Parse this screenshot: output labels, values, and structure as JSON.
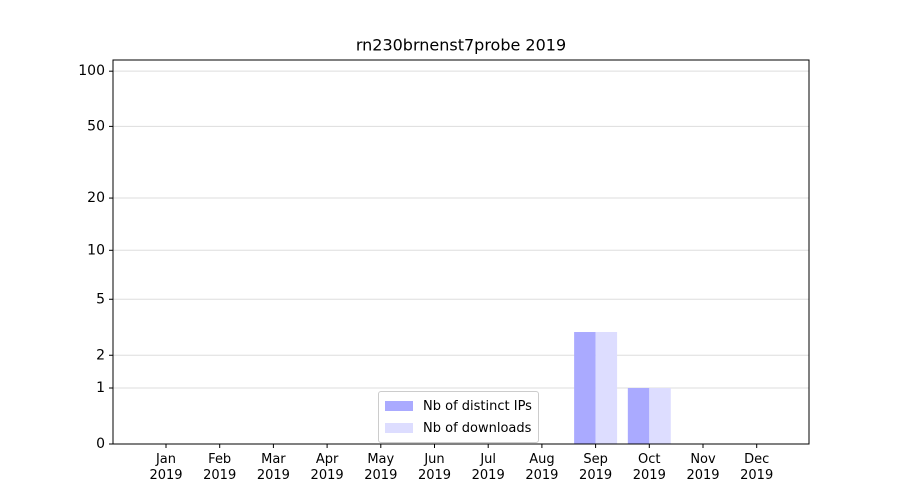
{
  "chart_data": {
    "type": "bar",
    "title": "rn230brnenst7probe 2019",
    "categories": [
      "Jan 2019",
      "Feb 2019",
      "Mar 2019",
      "Apr 2019",
      "May 2019",
      "Jun 2019",
      "Jul 2019",
      "Aug 2019",
      "Sep 2019",
      "Oct 2019",
      "Nov 2019",
      "Dec 2019"
    ],
    "series": [
      {
        "name": "Nb of distinct IPs",
        "color": "#aaaaff",
        "values": [
          0,
          0,
          0,
          0,
          0,
          0,
          0,
          0,
          3,
          1,
          0,
          0
        ]
      },
      {
        "name": "Nb of downloads",
        "color": "#ddddff",
        "values": [
          0,
          0,
          0,
          0,
          0,
          0,
          0,
          0,
          3,
          1,
          0,
          0
        ]
      }
    ],
    "yscale": "log1p",
    "ylim": [
      0,
      115
    ],
    "yticks": [
      0,
      1,
      2,
      5,
      10,
      20,
      50,
      100
    ],
    "grid": true,
    "legend": "lower center"
  }
}
